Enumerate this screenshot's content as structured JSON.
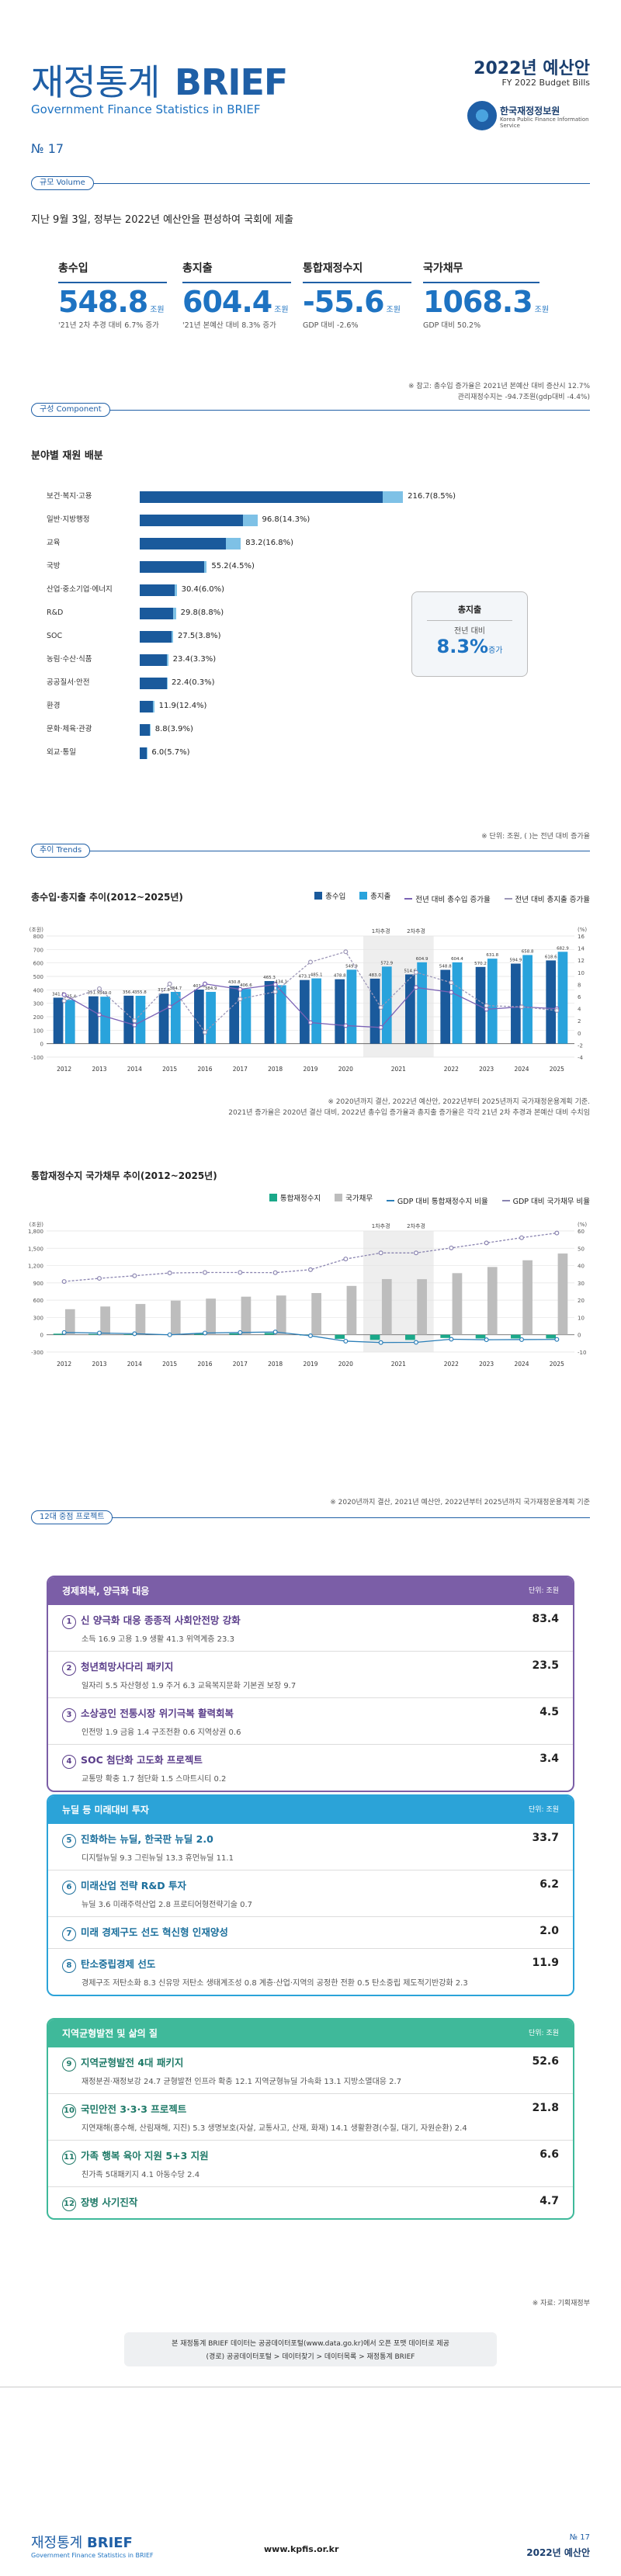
{
  "header": {
    "title_ko": "재정통계",
    "title_en_big": "BRIEF",
    "subtitle": "Government Finance Statistics in BRIEF",
    "right_title": "2022년 예산안",
    "right_sub": "FY 2022 Budget Bills",
    "org_name": "한국재정정보원",
    "org_en": "Korea Public Finance Information Service",
    "issue": "№ 17"
  },
  "scale": {
    "tag": "규모 Volume",
    "lead": "지난 9월 3일, 정부는 2022년 예산안을 편성하여 국회에 제출",
    "kpis": [
      {
        "label": "총수입",
        "value": "548.8",
        "unit": "조원",
        "note": "'21년 2차 추경 대비 6.7% 증가"
      },
      {
        "label": "총지출",
        "value": "604.4",
        "unit": "조원",
        "note": "'21년 본예산 대비 8.3% 증가"
      },
      {
        "label": "통합재정수지",
        "value": "-55.6",
        "unit": "조원",
        "note": "GDP 대비 -2.6%"
      },
      {
        "label": "국가채무",
        "value": "1068.3",
        "unit": "조원",
        "note": "GDP 대비 50.2%"
      }
    ],
    "foot1": "※ 참고: 총수입 증가율은 2021년 본예산 대비 증산시 12.7%",
    "foot2": "관리재정수지는 -94.7조원(gdp대비 -4.4%)"
  },
  "component": {
    "tag": "구성 Component",
    "title": "분야별 재원 배분",
    "items": [
      {
        "label": "보건·복지·고용",
        "total": 216.7,
        "growth": 8.5,
        "text": "216.7(8.5%)"
      },
      {
        "label": "일반·지방행정",
        "total": 96.8,
        "growth": 14.3,
        "text": "96.8(14.3%)"
      },
      {
        "label": "교육",
        "total": 83.2,
        "growth": 16.8,
        "text": "83.2(16.8%)"
      },
      {
        "label": "국방",
        "total": 55.2,
        "growth": 4.5,
        "text": "55.2(4.5%)"
      },
      {
        "label": "산업·중소기업·에너지",
        "total": 30.4,
        "growth": 6.0,
        "text": "30.4(6.0%)"
      },
      {
        "label": "R&D",
        "total": 29.8,
        "growth": 8.8,
        "text": "29.8(8.8%)"
      },
      {
        "label": "SOC",
        "total": 27.5,
        "growth": 3.8,
        "text": "27.5(3.8%)"
      },
      {
        "label": "농림·수산·식품",
        "total": 23.4,
        "growth": 3.3,
        "text": "23.4(3.3%)"
      },
      {
        "label": "공공질서·안전",
        "total": 22.4,
        "growth": 0.3,
        "text": "22.4(0.3%)"
      },
      {
        "label": "환경",
        "total": 11.9,
        "growth": 12.4,
        "text": "11.9(12.4%)"
      },
      {
        "label": "문화·체육·관광",
        "total": 8.8,
        "growth": 3.9,
        "text": "8.8(3.9%)"
      },
      {
        "label": "외교·통일",
        "total": 6.0,
        "growth": 5.7,
        "text": "6.0(5.7%)"
      }
    ],
    "callout_title": "총지출",
    "callout_sub": "전년 대비",
    "callout_value": "8.3%",
    "callout_suffix": "증가",
    "foot": "※ 단위: 조원, ( )는 전년 대비 증가율"
  },
  "trends": {
    "tag": "추이 Trends",
    "chart1_title": "총수입·총지출 추이(2012~2025년)",
    "chart1_legend": [
      "총수입",
      "총지출",
      "전년 대비 총수입 증가율",
      "전년 대비 총지출 증가율"
    ],
    "chart1_foot1": "※ 2020년까지 결산, 2022년 예산안, 2022년부터 2025년까지 국가재정운용계획 기준.",
    "chart1_foot2": "2021년 증가율은 2020년 결산 대비, 2022년 총수입 증가율과 총지출 증가율은 각각 21년 2차 추경과 본예산 대비 수치임",
    "chart2_title": "통합재정수지 국가채무 추이(2012~2025년)",
    "chart2_legend": [
      "통합재정수지",
      "국가채무",
      "GDP 대비 통합재정수지 비율",
      "GDP 대비 국가채무 비율"
    ],
    "chart2_foot": "※ 2020년까지 결산, 2021년 예산안, 2022년부터 2025년까지 국가재정운용계획 기준"
  },
  "chart_data": [
    {
      "type": "bar",
      "title": "총수입·총지출 추이(2012~2025년)",
      "ylabel": "(조원)",
      "y2label": "(%)",
      "ylim": [
        -100,
        800
      ],
      "y2lim": [
        -4,
        16
      ],
      "categories": [
        "2012",
        "2013",
        "2014",
        "2015",
        "2016",
        "2017",
        "2018",
        "2019",
        "2020",
        "2021a",
        "2021b",
        "2022",
        "2023",
        "2024",
        "2025"
      ],
      "category_labels": [
        "2012",
        "2013",
        "2014",
        "2015",
        "2016",
        "2017",
        "2018",
        "2019",
        "2020",
        "2021",
        "",
        "2022",
        "2023",
        "2024",
        "2025"
      ],
      "period_labels": [
        "1차추경",
        "2차추경"
      ],
      "series": [
        {
          "name": "총수입",
          "values": [
            341.8,
            351.9,
            356.4,
            371.8,
            401.8,
            430.8,
            465.3,
            473.1,
            478.8,
            483.0,
            514.6,
            548.8,
            570.2,
            594.9,
            618.6
          ],
          "labels": [
            "341.8",
            "351.9",
            "356.4",
            "371.8",
            "401.8",
            "430.8",
            "465.3",
            "473.1",
            "478.8",
            "483.0",
            "514.6",
            "548.8",
            "570.2",
            "594.9",
            "618.6"
          ],
          "color": "#1a5a9c"
        },
        {
          "name": "총지출",
          "values": [
            325.4,
            349.0,
            355.8,
            384.7,
            384.9,
            406.6,
            434.1,
            485.1,
            549.9,
            572.9,
            604.9,
            604.4,
            631.8,
            658.8,
            682.9
          ],
          "labels": [
            "325.4",
            "349.0",
            "355.8",
            "384.7",
            "384.9",
            "406.6",
            "434.1",
            "485.1",
            "549.9",
            "572.9",
            "604.9",
            "604.4",
            "631.8",
            "658.8",
            "682.9"
          ],
          "color": "#29a3dc"
        },
        {
          "name": "전년 대비 총수입 증가율",
          "values": [
            6.3,
            3.0,
            1.3,
            4.3,
            8.1,
            7.2,
            8.0,
            1.7,
            1.2,
            0.9,
            7.5,
            6.7,
            3.9,
            4.3,
            4.0
          ],
          "color": "#7b62b5"
        },
        {
          "name": "전년 대비 총지출 증가율",
          "values": [
            5.3,
            7.3,
            2.0,
            8.1,
            0.1,
            5.6,
            6.8,
            11.7,
            13.4,
            4.2,
            10.0,
            8.3,
            4.5,
            4.3,
            3.7
          ],
          "color": "#9d97b8"
        }
      ]
    },
    {
      "type": "bar",
      "title": "통합재정수지 국가채무 추이(2012~2025년)",
      "ylabel": "(조원)",
      "y2label": "(%)",
      "ylim": [
        -300,
        1800
      ],
      "y2lim": [
        -10,
        60
      ],
      "categories": [
        "2012",
        "2013",
        "2014",
        "2015",
        "2016",
        "2017",
        "2018",
        "2019",
        "2020",
        "2021a",
        "2021b",
        "2022",
        "2023",
        "2024",
        "2025"
      ],
      "category_labels": [
        "2012",
        "2013",
        "2014",
        "2015",
        "2016",
        "2017",
        "2018",
        "2019",
        "2020",
        "2021",
        "",
        "2022",
        "2023",
        "2024",
        "2025"
      ],
      "period_labels": [
        "1차추경",
        "2차추경"
      ],
      "series": [
        {
          "name": "통합재정수지",
          "values": [
            18.5,
            14.2,
            8.5,
            -0.2,
            16.9,
            24.0,
            31.2,
            -12.0,
            -71.2,
            -89.9,
            -90.3,
            -55.6,
            -64.2,
            -63.9,
            -64.3
          ],
          "color": "#1aa889"
        },
        {
          "name": "국가채무",
          "values": [
            443.1,
            489.8,
            533.2,
            591.5,
            626.9,
            660.2,
            680.5,
            723.2,
            846.9,
            965.9,
            963.9,
            1068.3,
            1175.4,
            1291.5,
            1408.5
          ],
          "color": "#bdbdbd"
        },
        {
          "name": "GDP 대비 통합재정수지 비율",
          "values": [
            1.3,
            1.0,
            0.6,
            0.0,
            1.0,
            1.3,
            1.6,
            -0.6,
            -3.7,
            -4.5,
            -4.4,
            -2.6,
            -2.9,
            -2.8,
            -2.7
          ],
          "color": "#2c7fb8"
        },
        {
          "name": "GDP 대비 국가채무 비율",
          "values": [
            30.8,
            32.6,
            34.1,
            35.7,
            36.0,
            36.0,
            35.9,
            37.6,
            43.8,
            47.3,
            47.3,
            50.2,
            53.1,
            56.1,
            58.8
          ],
          "color": "#8a84b0"
        }
      ]
    }
  ],
  "projects": {
    "tag": "12대 중점 프로젝트",
    "groups": [
      {
        "title": "경제회복, 양극화 대응",
        "unit": "단위: 조원",
        "color": "#7b5ea7",
        "items": [
          {
            "num": "1",
            "title": "신 양극화 대응 종종적 사회안전망 강화",
            "value": "83.4",
            "sub": "소득 16.9  고용 1.9  생활 41.3  위역계층 23.3"
          },
          {
            "num": "2",
            "title": "청년희망사다리 패키지",
            "value": "23.5",
            "sub": "일자리 5.5  자산형성 1.9  주거 6.3  교육복지문화 기본권 보장 9.7"
          },
          {
            "num": "3",
            "title": "소상공인 전통시장 위기극복 활력회복",
            "value": "4.5",
            "sub": "인전망 1.9  금융 1.4  구조전환 0.6  지역상권 0.6"
          },
          {
            "num": "4",
            "title": "SOC 첨단화 고도화 프로젝트",
            "value": "3.4",
            "sub": "교통망 확충 1.7  첨단화 1.5  스마트시티 0.2"
          }
        ]
      },
      {
        "title": "뉴딜 등 미래대비 투자",
        "unit": "단위: 조원",
        "color": "#2ba3d8",
        "items": [
          {
            "num": "5",
            "title": "진화하는 뉴딜, 한국판 뉴딜 2.0",
            "value": "33.7",
            "sub": "디지털뉴딜 9.3  그린뉴딜 13.3  휴먼뉴딜 11.1"
          },
          {
            "num": "6",
            "title": "미래산업 전략 R&D 투자",
            "value": "6.2",
            "sub": "뉴딜 3.6  미래주력산업 2.8  프로티어형전략기술 0.7"
          },
          {
            "num": "7",
            "title": "미래 경제구도 선도 혁신형 인재양성",
            "value": "2.0",
            "sub": ""
          },
          {
            "num": "8",
            "title": "탄소중립경제 선도",
            "value": "11.9",
            "sub": "경제구조 저탄소화 8.3  신유망 저탄소 생태계조성 0.8  계층·산업·지역의 공정한 전환 0.5  탄소중립 제도적기반강화 2.3"
          }
        ]
      },
      {
        "title": "지역균형발전 및 삶의 질",
        "unit": "단위: 조원",
        "color": "#3fb99a",
        "items": [
          {
            "num": "9",
            "title": "지역균형발전 4대 패키지",
            "value": "52.6",
            "sub": "재정분권·재정보강 24.7  균형발전 인프라 확충 12.1  지역균형뉴딜 가속화 13.1  지방소멸대응 2.7"
          },
          {
            "num": "10",
            "title": "국민안전 3·3·3 프로젝트",
            "value": "21.8",
            "sub": "지연재해(홍수해, 산림재해, 지진) 5.3  생명보호(자살, 교통사고, 산재, 화재) 14.1  생활환경(수질, 대기, 자원순환) 2.4"
          },
          {
            "num": "11",
            "title": "가족 행복 육아 지원 5+3 지원",
            "value": "6.6",
            "sub": "친가족 5대패키지 4.1  아동수당 2.4"
          },
          {
            "num": "12",
            "title": "장병 사기진작",
            "value": "4.7",
            "sub": ""
          }
        ]
      }
    ],
    "foot": "※ 자료: 기획재정부"
  },
  "notice": {
    "line1": "본 재정통계 BRIEF 데이터는 공공데이터포털(www.data.go.kr)에서 오픈 포맷 데이터로 제공",
    "line2": "(경로) 공공데이터포털 > 데이터찾기 > 데이터목록 > 재정통계 BRIEF"
  },
  "footer": {
    "brand_ko": "재정통계",
    "brand_en": "BRIEF",
    "brand_sub": "Government Finance Statistics in BRIEF",
    "url": "www.kpfis.or.kr",
    "issue": "№ 17",
    "label": "2022년 예산안"
  }
}
